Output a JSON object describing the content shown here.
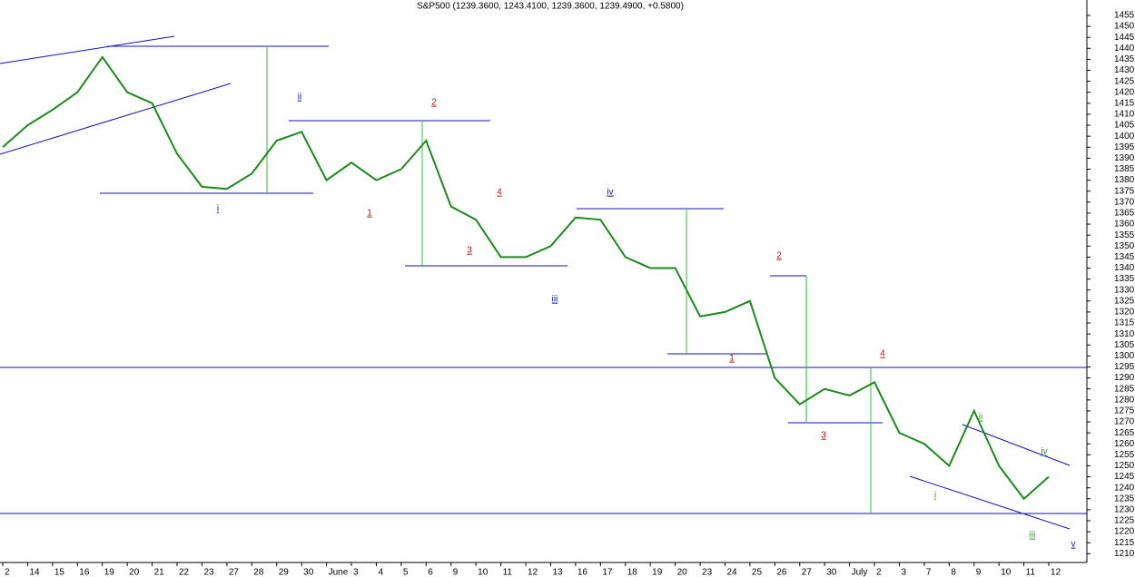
{
  "chart_data": {
    "type": "line",
    "title": "S&P500 (1239.3600, 1243.4100, 1239.3600, 1239.4900, +0.5800)",
    "categories": [
      "2",
      "14",
      "15",
      "16",
      "19",
      "20",
      "21",
      "22",
      "23",
      "27",
      "28",
      "29",
      "30",
      "June",
      "3",
      "4",
      "5",
      "6",
      "9",
      "10",
      "11",
      "12",
      "13",
      "16",
      "17",
      "18",
      "19",
      "20",
      "23",
      "24",
      "25",
      "26",
      "27",
      "30",
      "July",
      "2",
      "3",
      "7",
      "8",
      "9",
      "10",
      "11",
      "12"
    ],
    "series": [
      {
        "name": "S&P500",
        "color": "#1a8a1a",
        "values": [
          1395,
          1405,
          1412,
          1420,
          1436,
          1420,
          1415,
          1392,
          1377,
          1376,
          1383,
          1398,
          1402,
          1380,
          1388,
          1380,
          1385,
          1398,
          1368,
          1362,
          1345,
          1345,
          1350,
          1363,
          1362,
          1345,
          1340,
          1340,
          1318,
          1320,
          1325,
          1290,
          1278,
          1285,
          1282,
          1288,
          1265,
          1260,
          1250,
          1275,
          1250,
          1235,
          1245
        ]
      }
    ],
    "ylim": [
      1206,
      1462
    ],
    "yticks": [
      1210,
      1215,
      1220,
      1225,
      1230,
      1235,
      1240,
      1245,
      1250,
      1255,
      1260,
      1265,
      1270,
      1275,
      1280,
      1285,
      1290,
      1295,
      1300,
      1305,
      1310,
      1315,
      1320,
      1325,
      1330,
      1335,
      1340,
      1345,
      1350,
      1355,
      1360,
      1365,
      1370,
      1375,
      1380,
      1385,
      1390,
      1395,
      1400,
      1405,
      1410,
      1415,
      1420,
      1425,
      1430,
      1435,
      1440,
      1445,
      1450,
      1455
    ],
    "annotations": [
      {
        "text": "ii",
        "color": "#1010a0"
      },
      {
        "text": "2",
        "color": "#c01010"
      },
      {
        "text": "i",
        "color": "#1010a0"
      },
      {
        "text": "1",
        "color": "#c01010"
      },
      {
        "text": "4",
        "color": "#c01010"
      },
      {
        "text": "3",
        "color": "#c01010"
      },
      {
        "text": "iv",
        "color": "#1010a0"
      },
      {
        "text": "iii",
        "color": "#1010a0"
      },
      {
        "text": "2",
        "color": "#c01010"
      },
      {
        "text": "1",
        "color": "#c01010"
      },
      {
        "text": "4",
        "color": "#c01010"
      },
      {
        "text": "3",
        "color": "#c01010"
      },
      {
        "text": "ii",
        "color": "#2a9a2a"
      },
      {
        "text": "iv",
        "color": "#2a9a2a"
      },
      {
        "text": "i",
        "color": "#2a9a2a"
      },
      {
        "text": "iii",
        "color": "#2a9a2a"
      },
      {
        "text": "v",
        "color": "#1010a0"
      }
    ]
  }
}
